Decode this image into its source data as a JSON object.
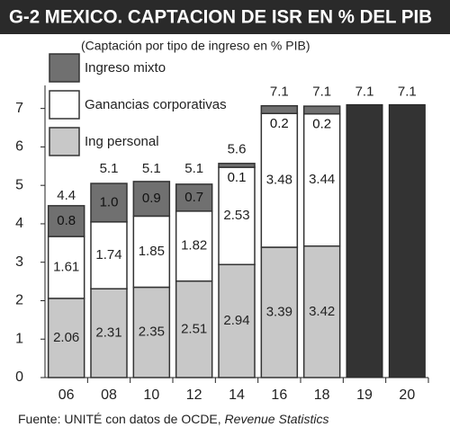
{
  "chart_data": {
    "type": "bar",
    "stacked": true,
    "title": "G-2 MEXICO. CAPTACION DE ISR EN % DEL PIB",
    "subtitle": "(Captación por tipo de ingreso en % PIB)",
    "source": {
      "text": "Fuente: UNITÉ con datos de OCDE,",
      "italic": "Revenue Statistics"
    },
    "categories": [
      "06",
      "08",
      "10",
      "12",
      "14",
      "16",
      "18",
      "19",
      "20"
    ],
    "series": [
      {
        "name": "Ing personal",
        "color": "#c8c8c8",
        "values": [
          2.06,
          2.31,
          2.35,
          2.51,
          2.94,
          3.39,
          3.42,
          null,
          null
        ]
      },
      {
        "name": "Ganancias corporativas",
        "color": "#ffffff",
        "values": [
          1.61,
          1.74,
          1.85,
          1.82,
          2.53,
          3.48,
          3.44,
          null,
          null
        ]
      },
      {
        "name": "Ingreso mixto",
        "color": "#707070",
        "values": [
          0.8,
          1.0,
          0.9,
          0.7,
          0.1,
          0.2,
          0.2,
          null,
          null
        ],
        "value_labels": [
          "0.8",
          "1.0",
          "0.9",
          "0.7",
          "0.1",
          "0.2",
          "0.2",
          null,
          null
        ]
      }
    ],
    "totals": {
      "color": "#333333",
      "values": [
        4.4,
        5.1,
        5.1,
        5.1,
        5.6,
        7.1,
        7.1,
        7.1,
        7.1
      ]
    },
    "ylim": [
      0,
      7.6
    ],
    "yticks": [
      0,
      1,
      2,
      3,
      4,
      5,
      6,
      7
    ]
  }
}
